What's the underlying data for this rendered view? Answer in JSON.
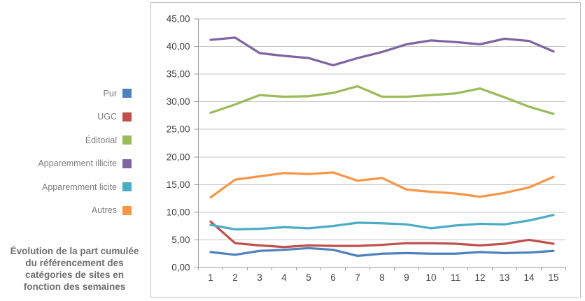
{
  "legend": {
    "items": [
      {
        "label": "Pur",
        "color": "#4F81BD"
      },
      {
        "label": "UGC",
        "color": "#C0504D"
      },
      {
        "label": "Éditorial",
        "color": "#9BBB59"
      },
      {
        "label": "Apparemment illicite",
        "color": "#8064A2"
      },
      {
        "label": "Apparemment licite",
        "color": "#4BACC6"
      },
      {
        "label": "Autres",
        "color": "#F79646"
      }
    ]
  },
  "caption": {
    "text": "Évolution de la part cumulée du référencement des catégories de sites en fonction des semaines",
    "lines": [
      "Évolution de la part cumulée",
      "du référencement des",
      "catégories de sites en",
      "fonction des semaines"
    ]
  },
  "chart_data": {
    "type": "line",
    "title": "",
    "xlabel": "",
    "ylabel": "",
    "grid": true,
    "legend_position": "left",
    "x": [
      1,
      2,
      3,
      4,
      5,
      6,
      7,
      8,
      9,
      10,
      11,
      12,
      13,
      14,
      15
    ],
    "x_tick_labels": [
      "1",
      "2",
      "3",
      "4",
      "5",
      "6",
      "7",
      "8",
      "9",
      "10",
      "11",
      "12",
      "13",
      "14",
      "15"
    ],
    "y_axis": {
      "min": 0,
      "max": 45,
      "step": 5,
      "tick_labels": [
        "0,00",
        "5,00",
        "10,00",
        "15,00",
        "20,00",
        "25,00",
        "30,00",
        "35,00",
        "40,00",
        "45,00"
      ]
    },
    "series": [
      {
        "name": "Pur",
        "color": "#4F81BD",
        "values": [
          2.8,
          2.3,
          3.0,
          3.2,
          3.5,
          3.2,
          2.1,
          2.5,
          2.6,
          2.5,
          2.5,
          2.8,
          2.6,
          2.7,
          3.0
        ]
      },
      {
        "name": "UGC",
        "color": "#C0504D",
        "values": [
          8.3,
          4.4,
          4.0,
          3.7,
          4.0,
          3.9,
          3.9,
          4.1,
          4.4,
          4.4,
          4.3,
          4.0,
          4.3,
          5.0,
          4.3
        ]
      },
      {
        "name": "Éditorial",
        "color": "#9BBB59",
        "values": [
          28.0,
          29.5,
          31.2,
          30.9,
          31.0,
          31.6,
          32.8,
          30.9,
          30.9,
          31.2,
          31.5,
          32.4,
          30.8,
          29.1,
          27.8
        ]
      },
      {
        "name": "Apparemment illicite",
        "color": "#8064A2",
        "values": [
          41.2,
          41.6,
          38.8,
          38.3,
          37.9,
          36.6,
          37.9,
          39.0,
          40.4,
          41.1,
          40.8,
          40.4,
          41.4,
          41.0,
          39.1
        ]
      },
      {
        "name": "Apparemment licite",
        "color": "#4BACC6",
        "values": [
          7.7,
          6.9,
          7.0,
          7.3,
          7.1,
          7.5,
          8.1,
          8.0,
          7.8,
          7.1,
          7.6,
          7.9,
          7.8,
          8.5,
          9.5
        ]
      },
      {
        "name": "Autres",
        "color": "#F79646",
        "values": [
          12.7,
          15.9,
          16.5,
          17.1,
          16.9,
          17.2,
          15.7,
          16.2,
          14.1,
          13.7,
          13.4,
          12.8,
          13.5,
          14.5,
          16.4
        ]
      }
    ],
    "style_colors": {
      "gridline": "#c3c3c3",
      "axis": "#9a9a9a",
      "tick_text": "#3f3f3f",
      "legend_text": "#7d7d7d",
      "caption_text": "#6e6e6e",
      "chart_border": "#bdbdbd"
    }
  }
}
